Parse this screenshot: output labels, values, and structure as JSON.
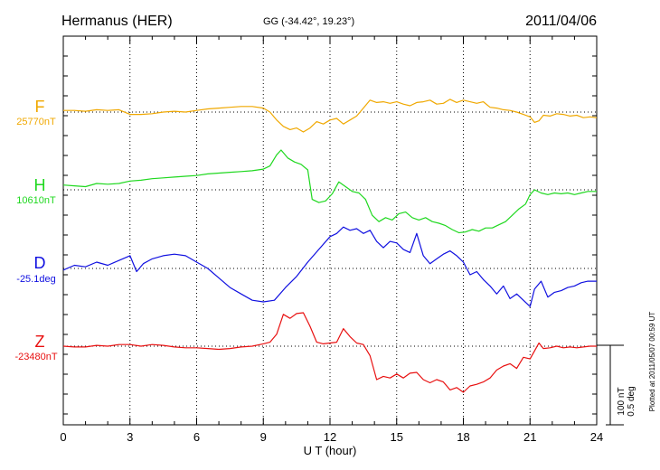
{
  "header": {
    "station": "Hermanus (HER)",
    "coords": "GG (-34.42°,  19.23°)",
    "date": "2011/04/06"
  },
  "footer": {
    "plotted": "Plotted at 2011/05/07 00:59 UT"
  },
  "scale_note": {
    "line1": "100 nT",
    "line2": "0.5 deg"
  },
  "chart_data": {
    "type": "line",
    "xlabel": "U T (hour)",
    "xlim": [
      0,
      24
    ],
    "x_ticks": [
      "0",
      "3",
      "6",
      "9",
      "12",
      "15",
      "18",
      "21",
      "24"
    ],
    "grid": true,
    "series": [
      {
        "name": "F",
        "baseline_label": "25770nT",
        "color": "#f0a800",
        "offset_unit": "nT",
        "x": [
          0,
          0.5,
          1,
          1.5,
          2,
          2.5,
          3,
          3.5,
          4,
          4.5,
          5,
          5.5,
          6,
          6.5,
          7,
          7.5,
          8,
          8.5,
          9,
          9.3,
          9.6,
          9.9,
          10.2,
          10.5,
          10.8,
          11.1,
          11.4,
          11.7,
          12,
          12.3,
          12.6,
          12.9,
          13.2,
          13.5,
          13.8,
          14.1,
          14.4,
          14.7,
          15,
          15.3,
          15.6,
          15.9,
          16.2,
          16.5,
          16.8,
          17.1,
          17.4,
          17.7,
          18,
          18.3,
          18.6,
          18.9,
          19.2,
          19.5,
          19.8,
          20.1,
          20.4,
          20.7,
          21,
          21.2,
          21.4,
          21.6,
          21.9,
          22.2,
          22.5,
          22.8,
          23.1,
          23.4,
          23.7,
          24
        ],
        "y": [
          2,
          2,
          1,
          3,
          2,
          3,
          -3,
          -3,
          -2,
          0,
          1,
          0,
          2,
          4,
          5,
          6,
          7,
          7,
          5,
          0,
          -10,
          -18,
          -22,
          -20,
          -25,
          -20,
          -12,
          -15,
          -10,
          -8,
          -15,
          -10,
          -5,
          5,
          15,
          12,
          13,
          11,
          13,
          10,
          8,
          12,
          13,
          15,
          10,
          11,
          16,
          12,
          15,
          13,
          11,
          13,
          6,
          5,
          3,
          2,
          0,
          -3,
          -6,
          -13,
          -11,
          -4,
          -5,
          -2,
          -3,
          -5,
          -4,
          -7,
          -6,
          -7
        ]
      },
      {
        "name": "H",
        "baseline_label": "10610nT",
        "color": "#1fd81f",
        "offset_unit": "nT",
        "x": [
          0,
          0.5,
          1,
          1.5,
          2,
          2.5,
          3,
          3.5,
          4,
          4.5,
          5,
          5.5,
          6,
          6.5,
          7,
          7.5,
          8,
          8.5,
          9,
          9.3,
          9.6,
          9.8,
          10.1,
          10.4,
          10.7,
          11,
          11.2,
          11.5,
          11.8,
          12.1,
          12.4,
          12.7,
          13,
          13.3,
          13.6,
          13.9,
          14.2,
          14.5,
          14.8,
          15.1,
          15.4,
          15.7,
          16,
          16.3,
          16.6,
          16.9,
          17.2,
          17.5,
          17.8,
          18.1,
          18.4,
          18.7,
          19,
          19.3,
          19.6,
          19.9,
          20.2,
          20.5,
          20.8,
          21,
          21.2,
          21.5,
          21.8,
          22.1,
          22.4,
          22.7,
          23,
          23.3,
          23.6,
          24
        ],
        "y": [
          6,
          5,
          4,
          8,
          7,
          8,
          11,
          12,
          14,
          15,
          16,
          17,
          18,
          20,
          21,
          22,
          23,
          24,
          26,
          30,
          44,
          50,
          40,
          35,
          32,
          25,
          -12,
          -16,
          -14,
          -5,
          10,
          4,
          -2,
          -4,
          -12,
          -32,
          -40,
          -35,
          -38,
          -30,
          -28,
          -35,
          -38,
          -35,
          -40,
          -42,
          -45,
          -50,
          -54,
          -53,
          -50,
          -52,
          -48,
          -48,
          -44,
          -40,
          -32,
          -24,
          -18,
          -6,
          0,
          -4,
          -6,
          -4,
          -5,
          -4,
          -6,
          -4,
          -2,
          -2
        ]
      },
      {
        "name": "D",
        "baseline_label": "-25.1deg",
        "color": "#1010e0",
        "offset_unit": "deg",
        "x": [
          0,
          0.5,
          1,
          1.5,
          2,
          2.5,
          3,
          3.3,
          3.6,
          4,
          4.5,
          5,
          5.5,
          6,
          6.5,
          7,
          7.5,
          8,
          8.5,
          9,
          9.5,
          10,
          10.5,
          11,
          11.5,
          12,
          12.3,
          12.6,
          12.9,
          13.2,
          13.5,
          13.8,
          14.1,
          14.4,
          14.7,
          15,
          15.3,
          15.6,
          15.9,
          16.2,
          16.5,
          16.8,
          17.1,
          17.4,
          17.7,
          18,
          18.3,
          18.6,
          18.9,
          19.2,
          19.5,
          19.8,
          20.1,
          20.4,
          20.7,
          21,
          21.2,
          21.5,
          21.8,
          22.1,
          22.4,
          22.7,
          23,
          23.3,
          23.6,
          24
        ],
        "y": [
          -0.01,
          0.02,
          0.01,
          0.04,
          0.02,
          0.05,
          0.08,
          -0.02,
          0.03,
          0.06,
          0.08,
          0.09,
          0.08,
          0.04,
          0,
          -0.06,
          -0.12,
          -0.16,
          -0.2,
          -0.21,
          -0.2,
          -0.12,
          -0.05,
          0.04,
          0.12,
          0.2,
          0.22,
          0.26,
          0.24,
          0.25,
          0.22,
          0.24,
          0.17,
          0.13,
          0.17,
          0.16,
          0.12,
          0.1,
          0.22,
          0.08,
          0.03,
          0.06,
          0.09,
          0.11,
          0.08,
          0.04,
          -0.04,
          -0.02,
          -0.07,
          -0.11,
          -0.16,
          -0.11,
          -0.19,
          -0.16,
          -0.2,
          -0.24,
          -0.13,
          -0.08,
          -0.18,
          -0.15,
          -0.14,
          -0.12,
          -0.11,
          -0.09,
          -0.08,
          -0.08
        ]
      },
      {
        "name": "Z",
        "baseline_label": "-23480nT",
        "color": "#e81010",
        "offset_unit": "nT",
        "x": [
          0,
          0.5,
          1,
          1.5,
          2,
          2.5,
          3,
          3.5,
          4,
          4.5,
          5,
          5.5,
          6,
          6.5,
          7,
          7.5,
          8,
          8.5,
          9,
          9.3,
          9.6,
          9.9,
          10.2,
          10.5,
          10.8,
          11.1,
          11.4,
          11.7,
          12,
          12.3,
          12.6,
          12.9,
          13.2,
          13.5,
          13.8,
          14.1,
          14.4,
          14.7,
          15,
          15.3,
          15.6,
          15.9,
          16.2,
          16.5,
          16.8,
          17.1,
          17.4,
          17.7,
          18,
          18.3,
          18.6,
          18.9,
          19.2,
          19.5,
          19.8,
          20.1,
          20.4,
          20.7,
          21,
          21.2,
          21.4,
          21.6,
          21.9,
          22.2,
          22.5,
          22.8,
          23.1,
          23.4,
          23.7,
          24
        ],
        "y": [
          0,
          -1,
          -1,
          1,
          0,
          2,
          2,
          0,
          2,
          1,
          -1,
          -2,
          -2,
          -3,
          -4,
          -3,
          -1,
          0,
          3,
          5,
          15,
          40,
          35,
          41,
          42,
          25,
          5,
          3,
          4,
          5,
          22,
          12,
          4,
          2,
          -12,
          -42,
          -38,
          -40,
          -35,
          -40,
          -34,
          -33,
          -42,
          -46,
          -42,
          -45,
          -55,
          -52,
          -58,
          -50,
          -48,
          -45,
          -40,
          -30,
          -25,
          -22,
          -28,
          -14,
          -16,
          -6,
          4,
          -3,
          -2,
          0,
          -2,
          -1,
          -2,
          -1,
          0,
          0
        ]
      }
    ],
    "scale_bar": {
      "nT": 100,
      "deg": 0.5
    }
  }
}
